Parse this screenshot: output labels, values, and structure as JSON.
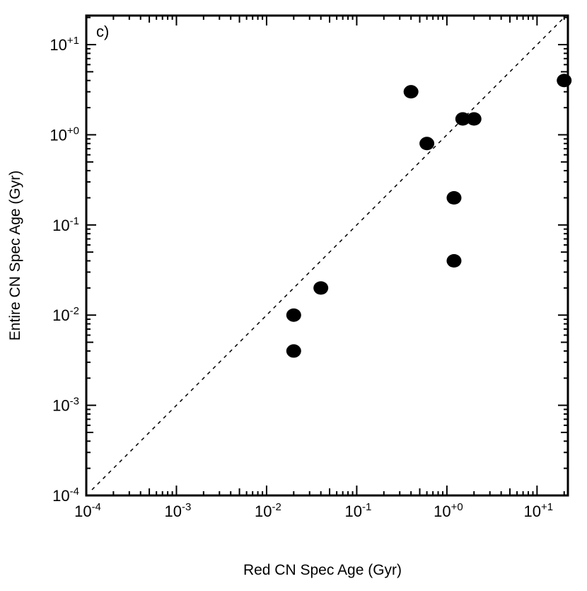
{
  "chart_data": {
    "type": "scatter",
    "title": "",
    "panel_label": "c)",
    "xlabel": "Red CN Spec Age (Gyr)",
    "ylabel": "Entire CN Spec Age (Gyr)",
    "xscale": "log",
    "yscale": "log",
    "xlim": [
      0.0001,
      22
    ],
    "ylim": [
      0.0001,
      21
    ],
    "grid": false,
    "x_tick_labels": [
      {
        "value": 0.0001,
        "base": "10",
        "exp": "-4"
      },
      {
        "value": 0.001,
        "base": "10",
        "exp": "-3"
      },
      {
        "value": 0.01,
        "base": "10",
        "exp": "-2"
      },
      {
        "value": 0.1,
        "base": "10",
        "exp": "-1"
      },
      {
        "value": 1,
        "base": "10",
        "exp": "+0"
      },
      {
        "value": 10,
        "base": "10",
        "exp": "+1"
      }
    ],
    "y_tick_labels": [
      {
        "value": 0.0001,
        "base": "10",
        "exp": "-4"
      },
      {
        "value": 0.001,
        "base": "10",
        "exp": "-3"
      },
      {
        "value": 0.01,
        "base": "10",
        "exp": "-2"
      },
      {
        "value": 0.1,
        "base": "10",
        "exp": "-1"
      },
      {
        "value": 1,
        "base": "10",
        "exp": "+0"
      },
      {
        "value": 10,
        "base": "10",
        "exp": "+1"
      }
    ],
    "reference_line": {
      "type": "y=x",
      "style": "dashed"
    },
    "points": [
      {
        "x": 0.02,
        "y": 0.004
      },
      {
        "x": 0.02,
        "y": 0.01
      },
      {
        "x": 0.04,
        "y": 0.02
      },
      {
        "x": 0.4,
        "y": 3
      },
      {
        "x": 0.6,
        "y": 0.8
      },
      {
        "x": 1.2,
        "y": 0.2
      },
      {
        "x": 1.2,
        "y": 0.04
      },
      {
        "x": 1.5,
        "y": 1.5
      },
      {
        "x": 2.0,
        "y": 1.5
      },
      {
        "x": 20,
        "y": 4
      }
    ],
    "marker_color": "#000000"
  }
}
